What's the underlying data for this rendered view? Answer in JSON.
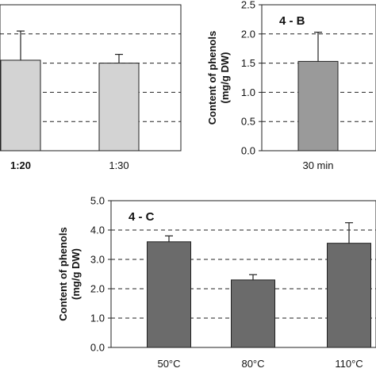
{
  "chart_data": [
    {
      "panel_label": "",
      "type": "bar",
      "categories": [
        "1:20",
        "1:30"
      ],
      "values": [
        1.55,
        1.5
      ],
      "errors": [
        0.5,
        0.15
      ],
      "ylabel": "",
      "xlabel": "",
      "ylim": [
        0,
        2.5
      ],
      "grid": "dashed horizontal",
      "bar_color": "#d3d3d3"
    },
    {
      "panel_label": "4 - B",
      "type": "bar",
      "categories": [
        "30 min"
      ],
      "values": [
        1.53
      ],
      "errors": [
        0.5
      ],
      "ylabel": "Content of phenols\n(mg/g DW)",
      "xlabel": "",
      "ylim": [
        0,
        2.5
      ],
      "yticks": [
        "0.0",
        "0.5",
        "1.0",
        "1.5",
        "2.0",
        "2.5"
      ],
      "grid": "dashed horizontal",
      "bar_color": "#9a9a9a"
    },
    {
      "panel_label": "4 - C",
      "type": "bar",
      "categories": [
        "50°C",
        "80°C",
        "110°C"
      ],
      "values": [
        3.6,
        2.3,
        3.55
      ],
      "errors": [
        0.2,
        0.18,
        0.7
      ],
      "ylabel": "Content of phenols\n(mg/g DW)",
      "xlabel": "",
      "ylim": [
        0,
        5.0
      ],
      "yticks": [
        "0.0",
        "1.0",
        "2.0",
        "3.0",
        "4.0",
        "5.0"
      ],
      "grid": "dashed horizontal",
      "bar_color": "#6b6b6b"
    }
  ]
}
